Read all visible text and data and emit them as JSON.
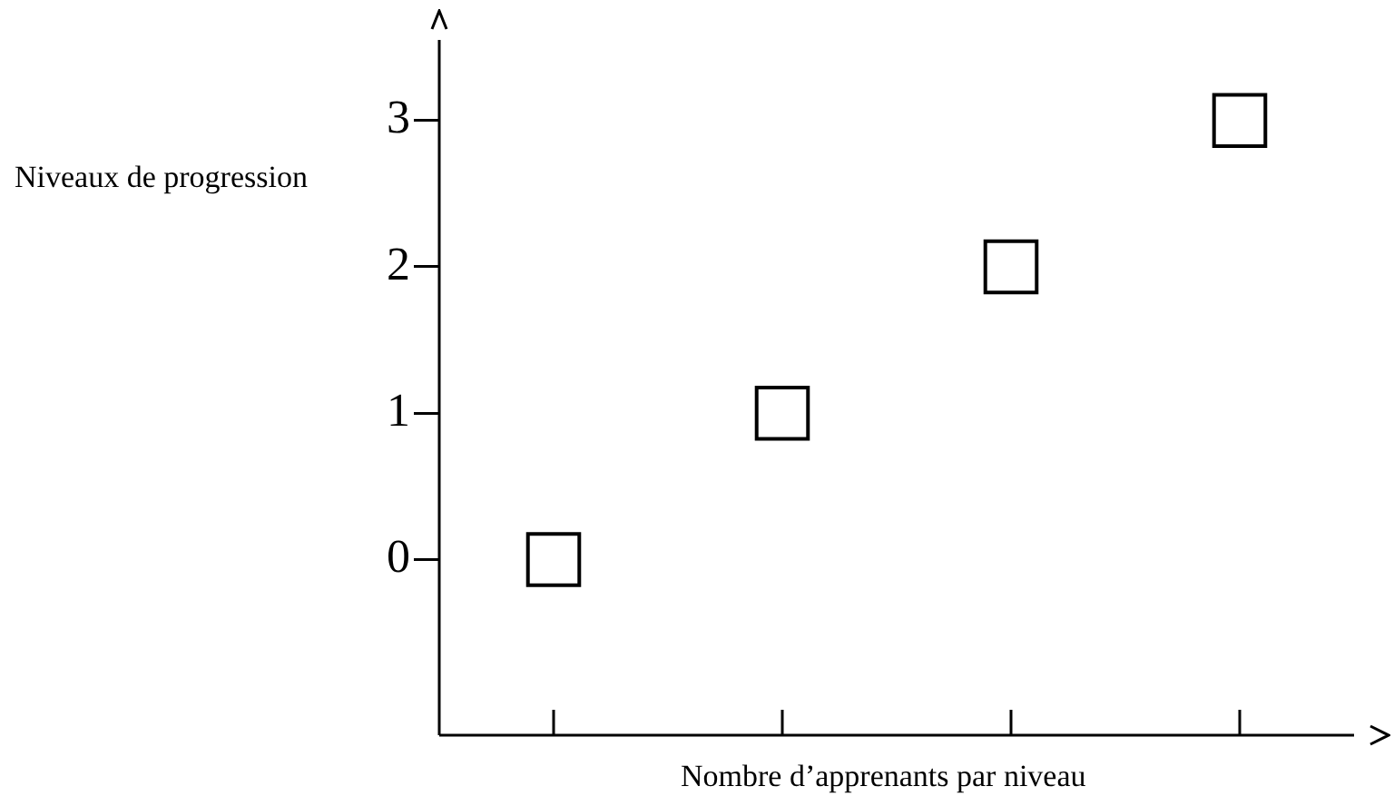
{
  "chart_data": {
    "type": "scatter",
    "xlabel": "Nombre d’apprenants par niveau",
    "ylabel": "Niveaux de progression",
    "categories": [
      null,
      null,
      null,
      null
    ],
    "values": [
      0,
      1,
      2,
      3
    ],
    "color": "#000000",
    "marker": "square",
    "ylim": [
      -1.2,
      3.55
    ],
    "yticks": [
      0,
      1,
      2,
      3
    ],
    "grid": false
  }
}
